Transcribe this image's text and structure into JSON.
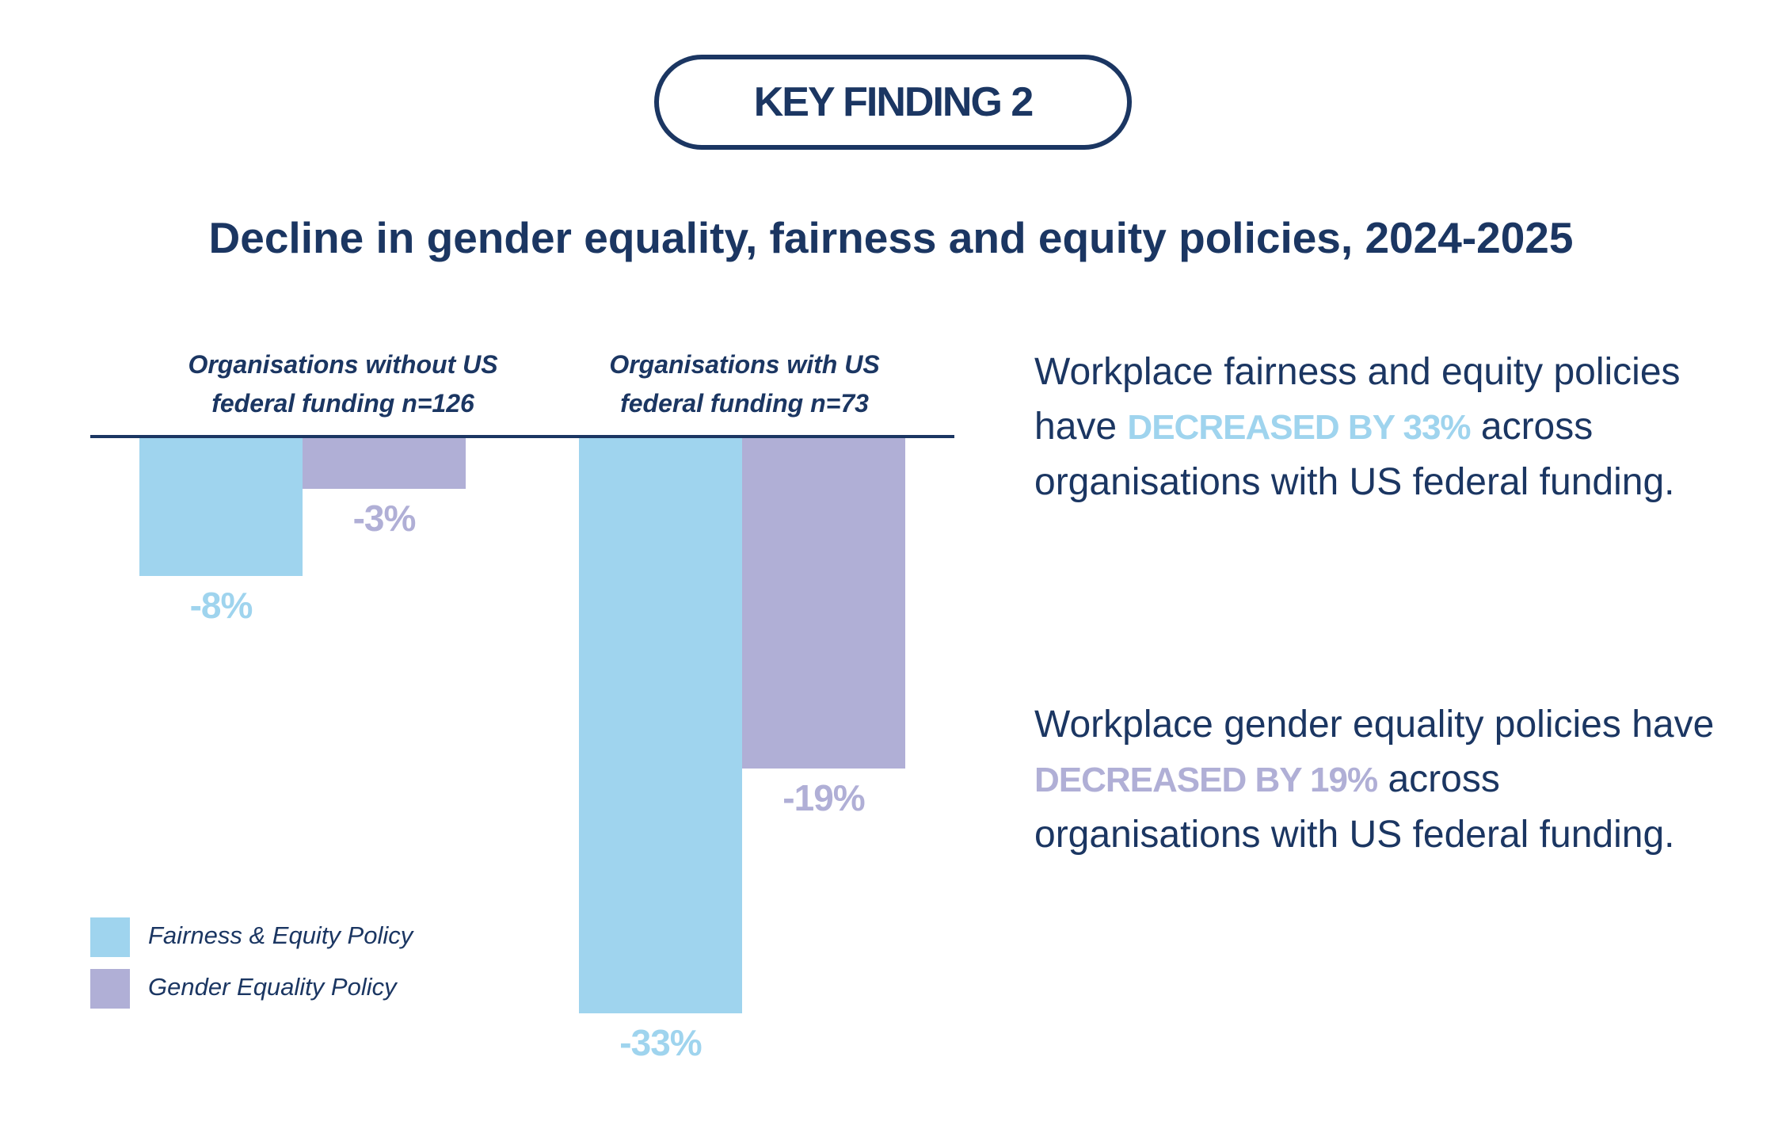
{
  "badge": "KEY FINDING 2",
  "colors": {
    "navy": "#1b3662",
    "fairness": "#9fd4ee",
    "gender": "#b0afd6"
  },
  "chart_data": {
    "type": "bar",
    "title": "Decline in gender equality, fairness and equity policies, 2024-2025",
    "categories": [
      "Organisations without US federal funding n=126",
      "Organisations with US federal funding n=73"
    ],
    "category_lines": [
      [
        "Organisations without US",
        "federal funding n=126"
      ],
      [
        "Organisations with US",
        "federal funding n=73"
      ]
    ],
    "series": [
      {
        "name": "Fairness & Equity Policy",
        "values": [
          -8,
          -33
        ],
        "labels": [
          "-8%",
          "-33%"
        ],
        "color": "#9fd4ee"
      },
      {
        "name": "Gender Equality Policy",
        "values": [
          -3,
          -19
        ],
        "labels": [
          "-3%",
          "-19%"
        ],
        "color": "#b0afd6"
      }
    ],
    "ylim": [
      -33,
      0
    ],
    "legend": "bottom-left"
  },
  "paragraphs": [
    {
      "before": "Workplace fairness and equity policies have ",
      "highlight": "DECREASED BY 33%",
      "after": " across organisations with US federal funding.",
      "color": "#9fd4ee"
    },
    {
      "before": "Workplace gender equality policies have ",
      "highlight": "DECREASED BY 19%",
      "after": " across organisations with US federal funding.",
      "color": "#b0afd6"
    }
  ]
}
